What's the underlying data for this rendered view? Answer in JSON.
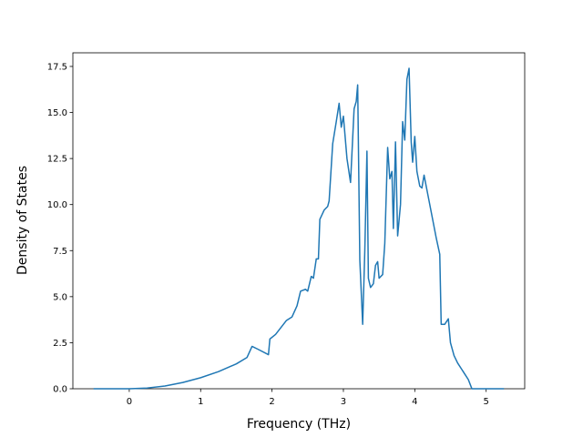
{
  "chart_data": {
    "type": "line",
    "xlabel": "Frequency (THz)",
    "ylabel": "Density of States",
    "x": [
      -0.5,
      0,
      0.25,
      0.5,
      0.75,
      1.0,
      1.25,
      1.5,
      1.65,
      1.72,
      1.8,
      1.95,
      1.97,
      2.05,
      2.2,
      2.28,
      2.35,
      2.4,
      2.47,
      2.5,
      2.55,
      2.58,
      2.62,
      2.65,
      2.67,
      2.73,
      2.78,
      2.8,
      2.85,
      2.9,
      2.94,
      2.97,
      3.0,
      3.05,
      3.1,
      3.15,
      3.18,
      3.2,
      3.23,
      3.27,
      3.3,
      3.33,
      3.35,
      3.38,
      3.42,
      3.45,
      3.48,
      3.5,
      3.55,
      3.58,
      3.62,
      3.65,
      3.68,
      3.7,
      3.73,
      3.76,
      3.8,
      3.83,
      3.86,
      3.89,
      3.92,
      3.95,
      3.97,
      4.0,
      4.03,
      4.07,
      4.1,
      4.13,
      4.16,
      4.2,
      4.25,
      4.3,
      4.35,
      4.37,
      4.42,
      4.47,
      4.5,
      4.55,
      4.6,
      4.65,
      4.7,
      4.75,
      4.78,
      4.8,
      5.0,
      5.25
    ],
    "series": [
      {
        "color": "#1f77b4",
        "values": [
          0,
          0,
          0.04,
          0.15,
          0.34,
          0.6,
          0.93,
          1.35,
          1.7,
          2.3,
          2.15,
          1.85,
          2.7,
          2.95,
          3.7,
          3.9,
          4.5,
          5.3,
          5.4,
          5.3,
          6.1,
          6.0,
          7.05,
          7.05,
          9.2,
          9.7,
          9.9,
          10.2,
          13.3,
          14.5,
          15.5,
          14.2,
          14.8,
          12.5,
          11.2,
          15.2,
          15.6,
          16.5,
          7.0,
          3.5,
          7.5,
          12.9,
          6.0,
          5.5,
          5.7,
          6.7,
          6.9,
          6.0,
          6.2,
          7.9,
          13.1,
          11.4,
          11.8,
          8.7,
          13.4,
          8.3,
          10.0,
          14.5,
          13.5,
          16.8,
          17.4,
          13.4,
          12.3,
          13.7,
          11.8,
          11.0,
          10.9,
          11.6,
          11.0,
          10.2,
          9.2,
          8.2,
          7.3,
          3.5,
          3.5,
          3.8,
          2.5,
          1.8,
          1.4,
          1.1,
          0.8,
          0.5,
          0.2,
          0,
          0,
          0
        ]
      }
    ],
    "xlim": [
      -0.79,
      5.54
    ],
    "xticks": [
      0,
      1,
      2,
      3,
      4,
      5
    ],
    "ylim": [
      0,
      18.24
    ],
    "yticks": [
      {
        "value": 0,
        "label": "0.0"
      },
      {
        "value": 2.5,
        "label": "2.5"
      },
      {
        "value": 5,
        "label": "5.0"
      },
      {
        "value": 7.5,
        "label": "7.5"
      },
      {
        "value": 10,
        "label": "10.0"
      },
      {
        "value": 12.5,
        "label": "12.5"
      },
      {
        "value": 15,
        "label": "15.0"
      },
      {
        "value": 17.5,
        "label": "17.5"
      }
    ]
  }
}
